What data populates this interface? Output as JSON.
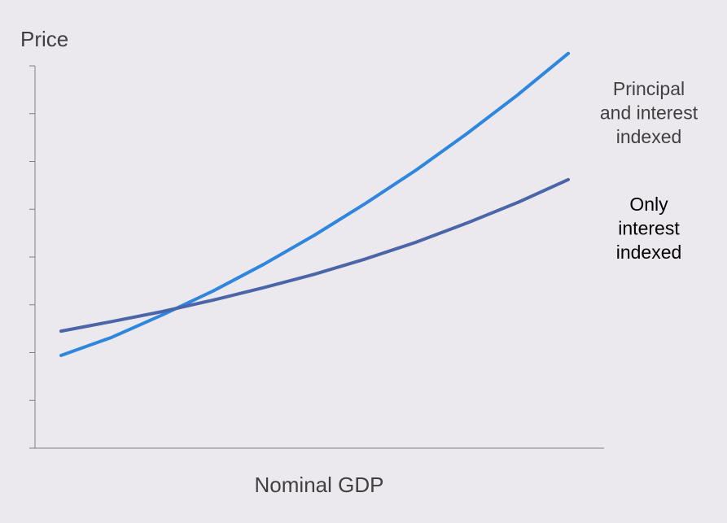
{
  "chart_data": {
    "type": "line",
    "title": "",
    "xlabel": "Nominal GDP",
    "ylabel": "Price",
    "xlim": [
      0,
      10
    ],
    "ylim": [
      0,
      8
    ],
    "y_ticks": [
      0,
      1,
      2,
      3,
      4,
      5,
      6,
      7,
      8
    ],
    "grid": false,
    "tick_labels_shown": false,
    "legend": "none (series labelled at right end of lines)",
    "series": [
      {
        "name": "Principal and interest indexed",
        "label_lines": [
          "Principal",
          "and interest",
          "indexed"
        ],
        "color": "#2e86de",
        "label_color": "#404040",
        "x": [
          0,
          1,
          2,
          3,
          4,
          5,
          6,
          7,
          8,
          9,
          10
        ],
        "values": [
          1.94,
          2.32,
          2.79,
          3.29,
          3.85,
          4.46,
          5.12,
          5.82,
          6.58,
          7.39,
          8.26
        ]
      },
      {
        "name": "Only interest indexed",
        "label_lines": [
          "Only",
          "interest",
          "indexed"
        ],
        "color": "#4a66a8",
        "label_color": "#000000",
        "x": [
          0,
          1,
          2,
          3,
          4,
          5,
          6,
          7,
          8,
          9,
          10
        ],
        "values": [
          2.45,
          2.65,
          2.86,
          3.1,
          3.36,
          3.64,
          3.96,
          4.31,
          4.71,
          5.14,
          5.62
        ]
      }
    ]
  }
}
